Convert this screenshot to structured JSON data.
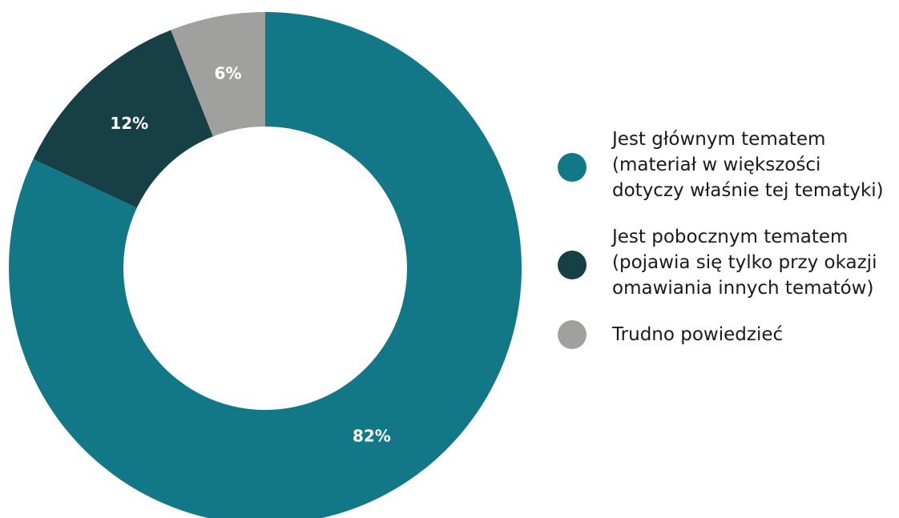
{
  "chart_data": {
    "type": "pie",
    "title": "",
    "donut": true,
    "categories": [
      "Jest głównym tematem (materiał w większości dotyczy właśnie tej tematyki)",
      "Jest pobocznym tematem (pojawia się tylko przy okazji omawiania innych tematów)",
      "Trudno powiedzieć"
    ],
    "values": [
      82,
      12,
      6
    ],
    "value_labels": [
      "82%",
      "12%",
      "6%"
    ],
    "colors": [
      "#127887",
      "#173f46",
      "#a0a09f"
    ],
    "legend_position": "right"
  },
  "legend": {
    "items": [
      {
        "lines": [
          "Jest głównym tematem",
          "(materiał w większości",
          "dotyczy właśnie tej tematyki)"
        ],
        "color": "#127887"
      },
      {
        "lines": [
          "Jest pobocznym tematem",
          "(pojawia się tylko przy okazji",
          "omawiania innych tematów)"
        ],
        "color": "#173f46"
      },
      {
        "lines": [
          "Trudno powiedzieć"
        ],
        "color": "#a0a09f"
      }
    ]
  }
}
